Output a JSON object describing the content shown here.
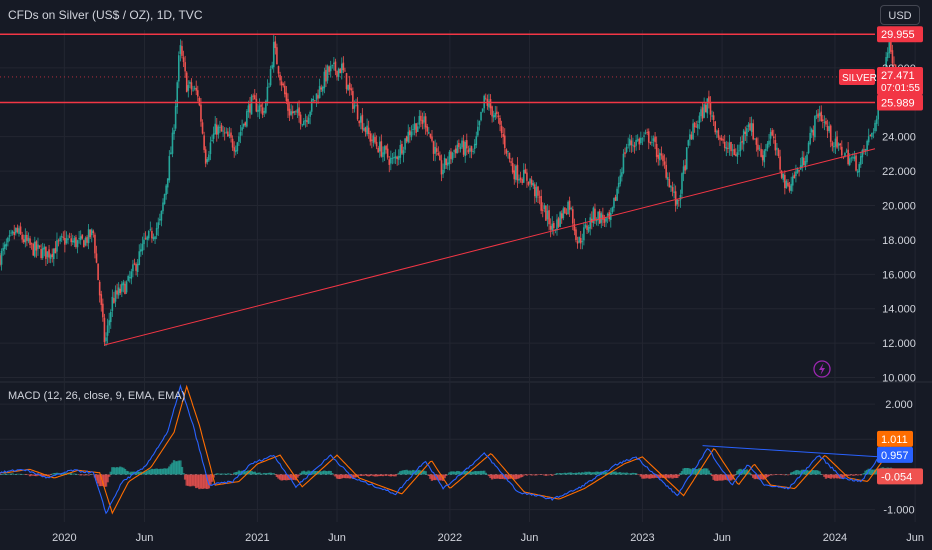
{
  "header": {
    "title": "CFDs on Silver (US$ / OZ), 1D, TVC",
    "currency": "USD"
  },
  "colors": {
    "background": "#161a25",
    "grid": "#232631",
    "resistance": "#f23645",
    "trendline": "#f23645",
    "up_candle": "#26a69a",
    "down_candle": "#ef5350",
    "macd_line": "#2962ff",
    "signal_line": "#ff6d00",
    "hist_up": "#26a69a",
    "hist_down": "#ef5350",
    "axis_text": "#d1d4dc"
  },
  "chart_data": [
    {
      "type": "candlestick",
      "title": "CFDs on Silver (US$ / OZ), 1D, TVC",
      "y_ticks": [
        "28.000",
        "26.000",
        "24.000",
        "22.000",
        "20.000",
        "18.000",
        "16.000",
        "14.000",
        "12.000",
        "10.000"
      ],
      "ylim": [
        9.8,
        30.2
      ],
      "x_ticks": [
        "2020",
        "Jun",
        "2021",
        "Jun",
        "2022",
        "Jun",
        "2023",
        "Jun",
        "2024",
        "Jun"
      ],
      "x_tick_dates": [
        "2020-01-01",
        "2020-06-01",
        "2021-01-01",
        "2021-06-01",
        "2022-01-01",
        "2022-06-01",
        "2023-01-01",
        "2023-06-01",
        "2024-01-01",
        "2024-06-01"
      ],
      "xlim": [
        "2019-09-01",
        "2024-07-03"
      ],
      "price_path": [
        {
          "date": "2019-09-01",
          "value": 17.0
        },
        {
          "date": "2019-10-01",
          "value": 18.5
        },
        {
          "date": "2019-11-01",
          "value": 17.5
        },
        {
          "date": "2019-12-01",
          "value": 17.2
        },
        {
          "date": "2020-01-01",
          "value": 18.0
        },
        {
          "date": "2020-02-01",
          "value": 17.8
        },
        {
          "date": "2020-02-25",
          "value": 18.4
        },
        {
          "date": "2020-03-18",
          "value": 11.9
        },
        {
          "date": "2020-04-01",
          "value": 14.5
        },
        {
          "date": "2020-05-01",
          "value": 15.5
        },
        {
          "date": "2020-06-01",
          "value": 17.8
        },
        {
          "date": "2020-07-01",
          "value": 19.0
        },
        {
          "date": "2020-07-25",
          "value": 24.0
        },
        {
          "date": "2020-08-07",
          "value": 29.2
        },
        {
          "date": "2020-08-20",
          "value": 27.0
        },
        {
          "date": "2020-09-10",
          "value": 26.5
        },
        {
          "date": "2020-09-25",
          "value": 22.8
        },
        {
          "date": "2020-10-15",
          "value": 24.5
        },
        {
          "date": "2020-11-20",
          "value": 23.5
        },
        {
          "date": "2020-12-20",
          "value": 26.0
        },
        {
          "date": "2021-01-15",
          "value": 25.5
        },
        {
          "date": "2021-02-01",
          "value": 29.2
        },
        {
          "date": "2021-03-01",
          "value": 25.5
        },
        {
          "date": "2021-04-01",
          "value": 25.0
        },
        {
          "date": "2021-05-15",
          "value": 27.8
        },
        {
          "date": "2021-06-10",
          "value": 28.0
        },
        {
          "date": "2021-07-01",
          "value": 26.0
        },
        {
          "date": "2021-08-01",
          "value": 24.0
        },
        {
          "date": "2021-09-15",
          "value": 22.5
        },
        {
          "date": "2021-10-20",
          "value": 24.5
        },
        {
          "date": "2021-11-15",
          "value": 25.0
        },
        {
          "date": "2021-12-15",
          "value": 22.0
        },
        {
          "date": "2022-01-15",
          "value": 23.5
        },
        {
          "date": "2022-02-15",
          "value": 23.0
        },
        {
          "date": "2022-03-08",
          "value": 26.2
        },
        {
          "date": "2022-04-01",
          "value": 25.0
        },
        {
          "date": "2022-05-01",
          "value": 22.0
        },
        {
          "date": "2022-06-01",
          "value": 21.5
        },
        {
          "date": "2022-07-15",
          "value": 18.6
        },
        {
          "date": "2022-08-15",
          "value": 20.2
        },
        {
          "date": "2022-09-01",
          "value": 17.8
        },
        {
          "date": "2022-10-01",
          "value": 19.5
        },
        {
          "date": "2022-11-01",
          "value": 19.0
        },
        {
          "date": "2022-12-01",
          "value": 23.5
        },
        {
          "date": "2023-01-15",
          "value": 24.0
        },
        {
          "date": "2023-02-15",
          "value": 22.0
        },
        {
          "date": "2023-03-08",
          "value": 19.9
        },
        {
          "date": "2023-04-01",
          "value": 24.0
        },
        {
          "date": "2023-05-05",
          "value": 26.0
        },
        {
          "date": "2023-06-01",
          "value": 23.5
        },
        {
          "date": "2023-07-01",
          "value": 23.0
        },
        {
          "date": "2023-07-20",
          "value": 25.0
        },
        {
          "date": "2023-08-15",
          "value": 22.8
        },
        {
          "date": "2023-09-01",
          "value": 24.2
        },
        {
          "date": "2023-10-01",
          "value": 21.0
        },
        {
          "date": "2023-11-01",
          "value": 22.5
        },
        {
          "date": "2023-12-01",
          "value": 25.5
        },
        {
          "date": "2024-01-01",
          "value": 23.5
        },
        {
          "date": "2024-02-15",
          "value": 22.3
        },
        {
          "date": "2024-03-01",
          "value": 23.5
        },
        {
          "date": "2024-03-20",
          "value": 25.0
        },
        {
          "date": "2024-04-01",
          "value": 27.0
        },
        {
          "date": "2024-04-12",
          "value": 29.8
        },
        {
          "date": "2024-04-20",
          "value": 28.5
        },
        {
          "date": "2024-04-30",
          "value": 27.47
        }
      ],
      "horizontal_lines": [
        {
          "value": 29.955,
          "label": "29.955"
        },
        {
          "value": 25.989,
          "label": "25.989"
        }
      ],
      "trendline": {
        "start": {
          "date": "2020-03-18",
          "value": 11.9
        },
        "end": {
          "date": "2024-07-01",
          "value": 23.3
        }
      },
      "last_price": {
        "symbol": "SILVER",
        "value": "27.471",
        "countdown": "07:01:55",
        "numeric": 27.471
      }
    },
    {
      "type": "line",
      "title": "MACD (12, 26, close, 9, EMA, EMA)",
      "y_ticks": [
        "2.000",
        "1.000",
        "-1.000"
      ],
      "y_tick_values": [
        2,
        1,
        -1
      ],
      "ylim": [
        -1.35,
        2.6
      ],
      "zero_line": true,
      "macd_path": [
        {
          "date": "2019-09-01",
          "value": 0.05
        },
        {
          "date": "2019-10-15",
          "value": 0.15
        },
        {
          "date": "2019-12-01",
          "value": -0.1
        },
        {
          "date": "2020-01-15",
          "value": 0.12
        },
        {
          "date": "2020-02-25",
          "value": 0.05
        },
        {
          "date": "2020-03-20",
          "value": -1.1
        },
        {
          "date": "2020-04-20",
          "value": -0.2
        },
        {
          "date": "2020-06-01",
          "value": 0.2
        },
        {
          "date": "2020-07-15",
          "value": 1.2
        },
        {
          "date": "2020-08-08",
          "value": 2.5
        },
        {
          "date": "2020-09-01",
          "value": 1.4
        },
        {
          "date": "2020-10-01",
          "value": -0.3
        },
        {
          "date": "2020-11-15",
          "value": -0.2
        },
        {
          "date": "2020-12-20",
          "value": 0.3
        },
        {
          "date": "2021-02-01",
          "value": 0.55
        },
        {
          "date": "2021-03-15",
          "value": -0.35
        },
        {
          "date": "2021-05-20",
          "value": 0.55
        },
        {
          "date": "2021-07-01",
          "value": -0.1
        },
        {
          "date": "2021-09-20",
          "value": -0.55
        },
        {
          "date": "2021-11-15",
          "value": 0.4
        },
        {
          "date": "2021-12-20",
          "value": -0.4
        },
        {
          "date": "2022-03-08",
          "value": 0.6
        },
        {
          "date": "2022-05-10",
          "value": -0.5
        },
        {
          "date": "2022-07-15",
          "value": -0.7
        },
        {
          "date": "2022-09-01",
          "value": -0.4
        },
        {
          "date": "2022-11-15",
          "value": 0.3
        },
        {
          "date": "2022-12-20",
          "value": 0.5
        },
        {
          "date": "2023-03-08",
          "value": -0.6
        },
        {
          "date": "2023-05-05",
          "value": 0.75
        },
        {
          "date": "2023-06-20",
          "value": -0.3
        },
        {
          "date": "2023-07-20",
          "value": 0.3
        },
        {
          "date": "2023-08-20",
          "value": -0.3
        },
        {
          "date": "2023-10-05",
          "value": -0.4
        },
        {
          "date": "2023-12-01",
          "value": 0.55
        },
        {
          "date": "2024-01-15",
          "value": -0.1
        },
        {
          "date": "2024-02-20",
          "value": -0.2
        },
        {
          "date": "2024-03-20",
          "value": 0.4
        },
        {
          "date": "2024-04-18",
          "value": 1.2
        },
        {
          "date": "2024-04-30",
          "value": 0.957
        }
      ],
      "signal_lag_days": 12,
      "macd_divergence_line": {
        "start": {
          "date": "2023-04-25",
          "value": 0.82
        },
        "end": {
          "date": "2024-05-20",
          "value": 0.45
        }
      },
      "labels": {
        "signal": "1.011",
        "macd": "0.957",
        "histogram": "-0.054"
      },
      "label_values": {
        "signal": 1.011,
        "macd": 0.957,
        "histogram": -0.054
      }
    }
  ]
}
